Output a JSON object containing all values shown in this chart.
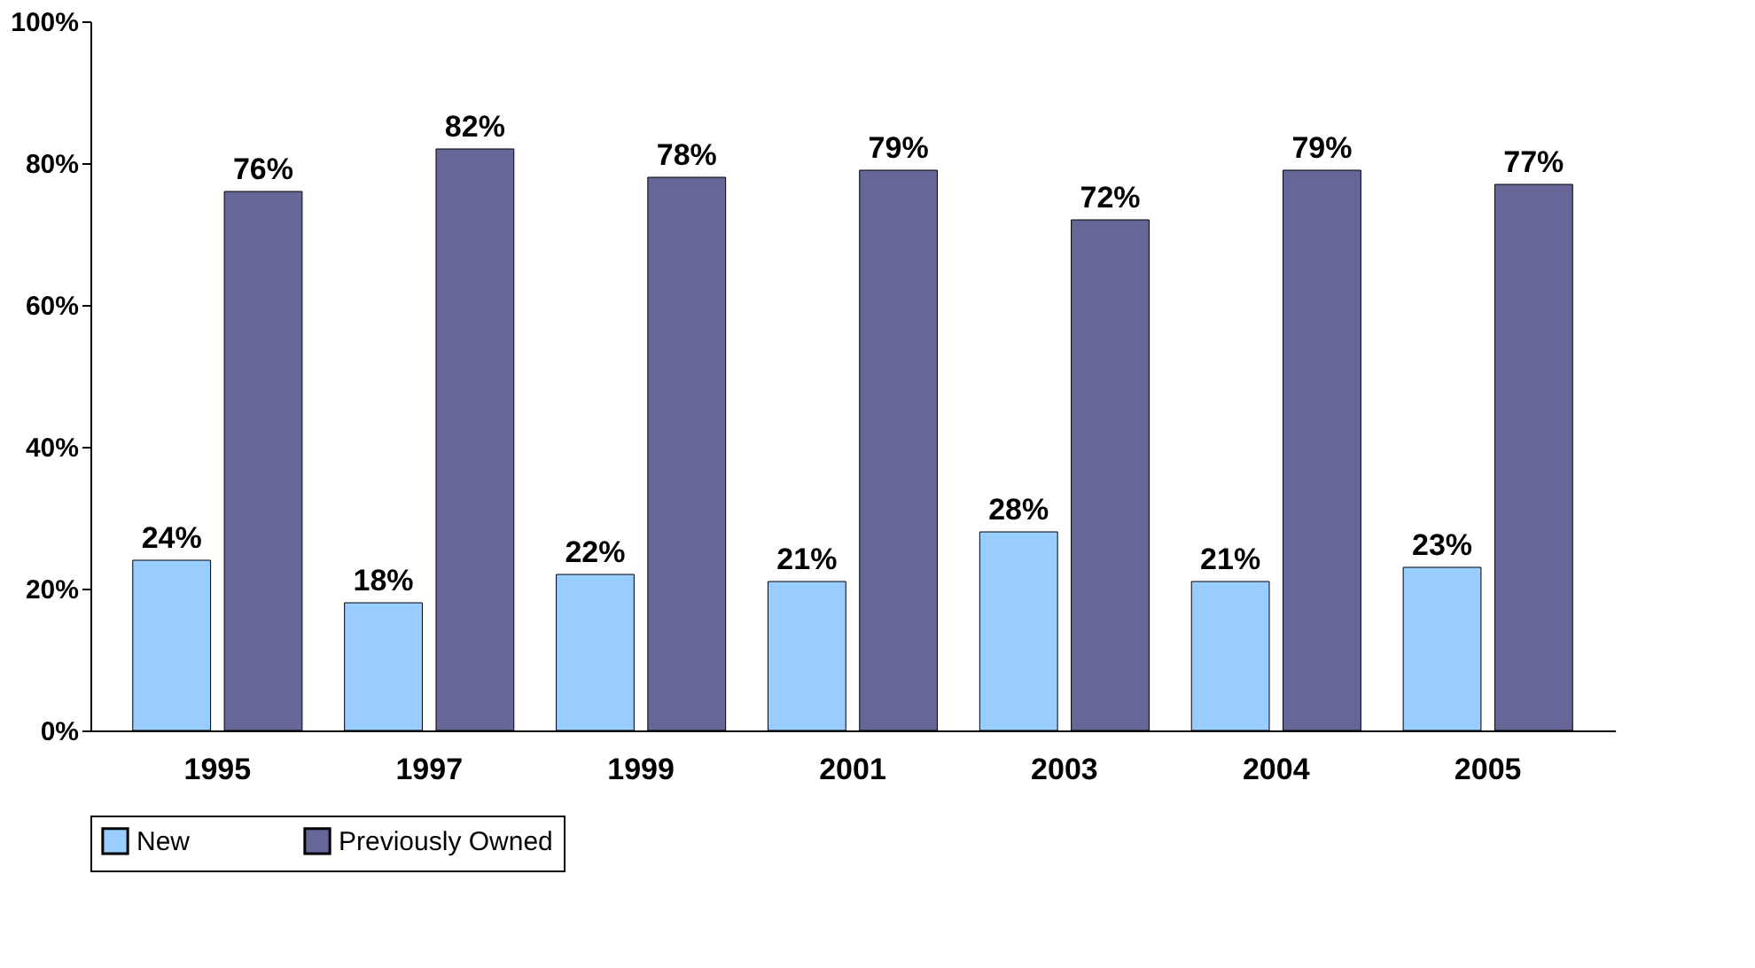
{
  "chart_data": {
    "type": "bar",
    "categories": [
      "1995",
      "1997",
      "1999",
      "2001",
      "2003",
      "2004",
      "2005"
    ],
    "series": [
      {
        "name": "New",
        "color": "#99ccff",
        "values": [
          24,
          18,
          22,
          21,
          28,
          21,
          23
        ],
        "value_labels": [
          "24%",
          "18%",
          "22%",
          "21%",
          "28%",
          "21%",
          "23%"
        ]
      },
      {
        "name": "Previously Owned",
        "color": "#666699",
        "values": [
          76,
          82,
          78,
          79,
          72,
          79,
          77
        ],
        "value_labels": [
          "76%",
          "82%",
          "78%",
          "79%",
          "72%",
          "79%",
          "77%"
        ]
      }
    ],
    "ylim": [
      0,
      100
    ],
    "yticks": [
      {
        "value": 0,
        "label": "0%"
      },
      {
        "value": 20,
        "label": "20%"
      },
      {
        "value": 40,
        "label": "40%"
      },
      {
        "value": 60,
        "label": "60%"
      },
      {
        "value": 80,
        "label": "80%"
      },
      {
        "value": 100,
        "label": "100%"
      }
    ],
    "grid": false,
    "legend": "bottom"
  }
}
